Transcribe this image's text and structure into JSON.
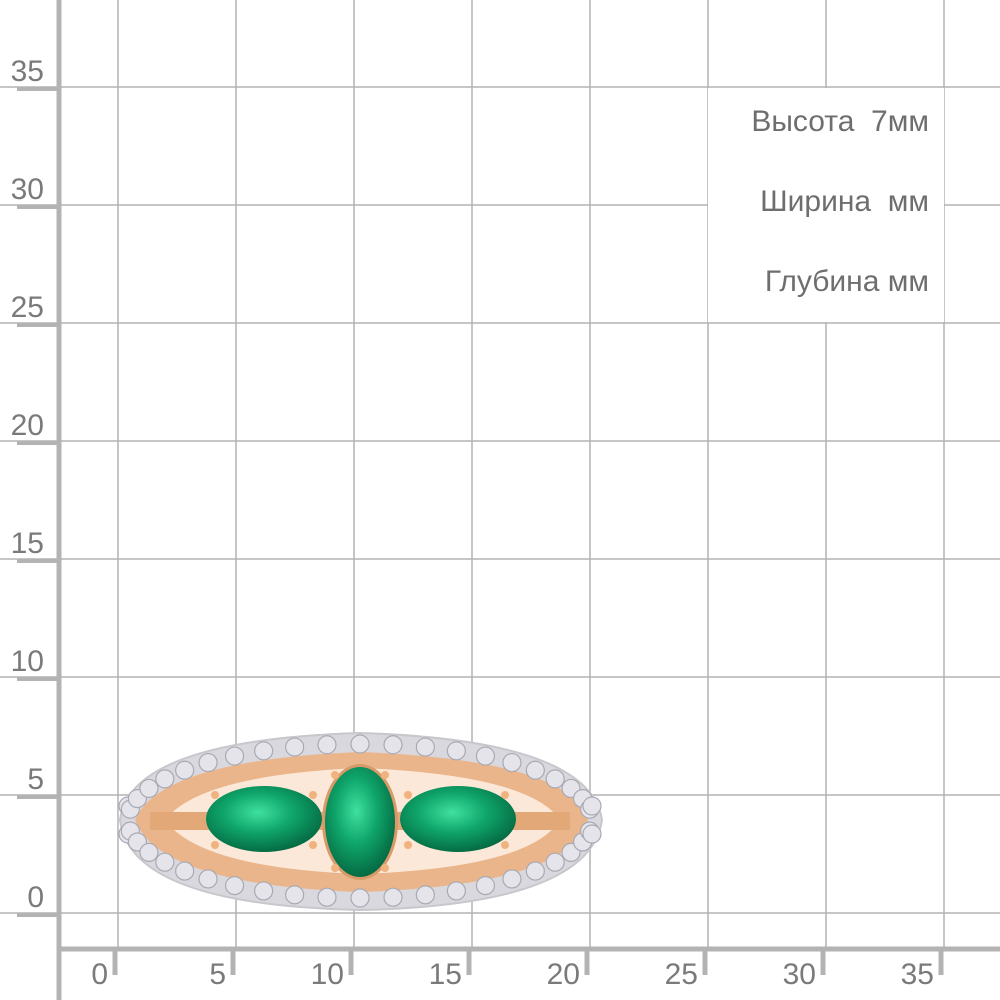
{
  "grid": {
    "y_ticks": [
      "35",
      "30",
      "25",
      "20",
      "15",
      "10",
      "5",
      "0"
    ],
    "x_ticks": [
      "0",
      "5",
      "10",
      "15",
      "20",
      "25",
      "30",
      "35"
    ],
    "unit": "mm",
    "line_color": "#b3b3b3",
    "label_color": "#7a7a7a"
  },
  "dimensions": {
    "height": "Высота  7мм",
    "width": "Ширина  мм",
    "depth": "Глубина мм"
  },
  "product": {
    "type": "ring",
    "metal_color": "#e8a878",
    "stone_color": "#0a9a62",
    "diamond_color": "#e4e4ea"
  }
}
